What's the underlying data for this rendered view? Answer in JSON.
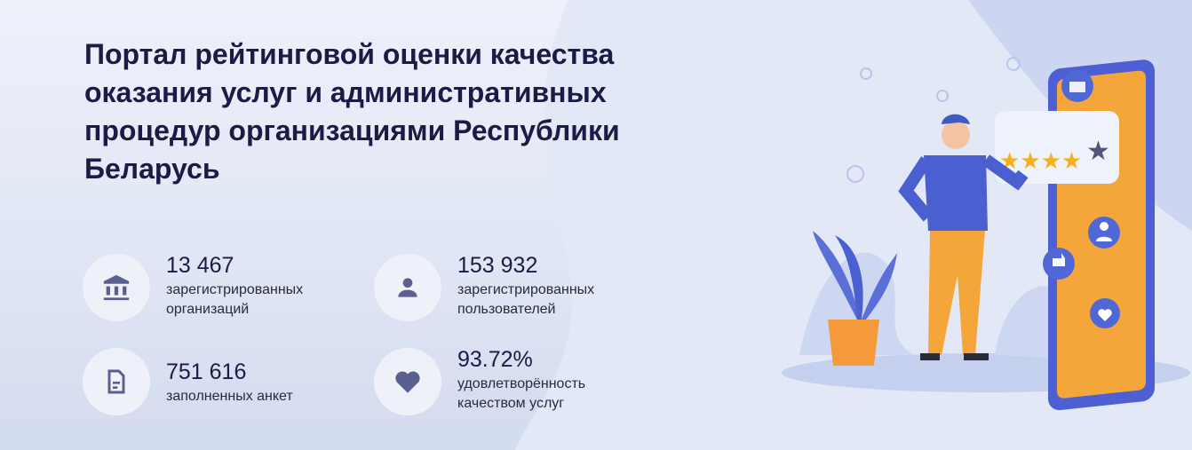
{
  "header": {
    "title": "Портал рейтинговой оценки качества оказания услуг и административных процедур организациями Республики Беларусь"
  },
  "stats": [
    {
      "value": "13 467",
      "label_1": "зарегистрированных",
      "label_2": "организаций",
      "icon": "bank-icon"
    },
    {
      "value": "153 932",
      "label_1": "зарегистрированных",
      "label_2": "пользователей",
      "icon": "user-icon"
    },
    {
      "value": "751 616",
      "label_1": "заполненных анкет",
      "label_2": "",
      "icon": "document-icon"
    },
    {
      "value": "93.72%",
      "label_1": "удовлетворённость",
      "label_2": "качеством услуг",
      "icon": "heart-icon"
    }
  ],
  "illustration": {
    "rating_stars": 4,
    "rating_max": 5
  },
  "colors": {
    "title": "#1c1b45",
    "icon": "#5b5f8f",
    "accent": "#4a5fd0",
    "phone": "#f4a63a"
  }
}
